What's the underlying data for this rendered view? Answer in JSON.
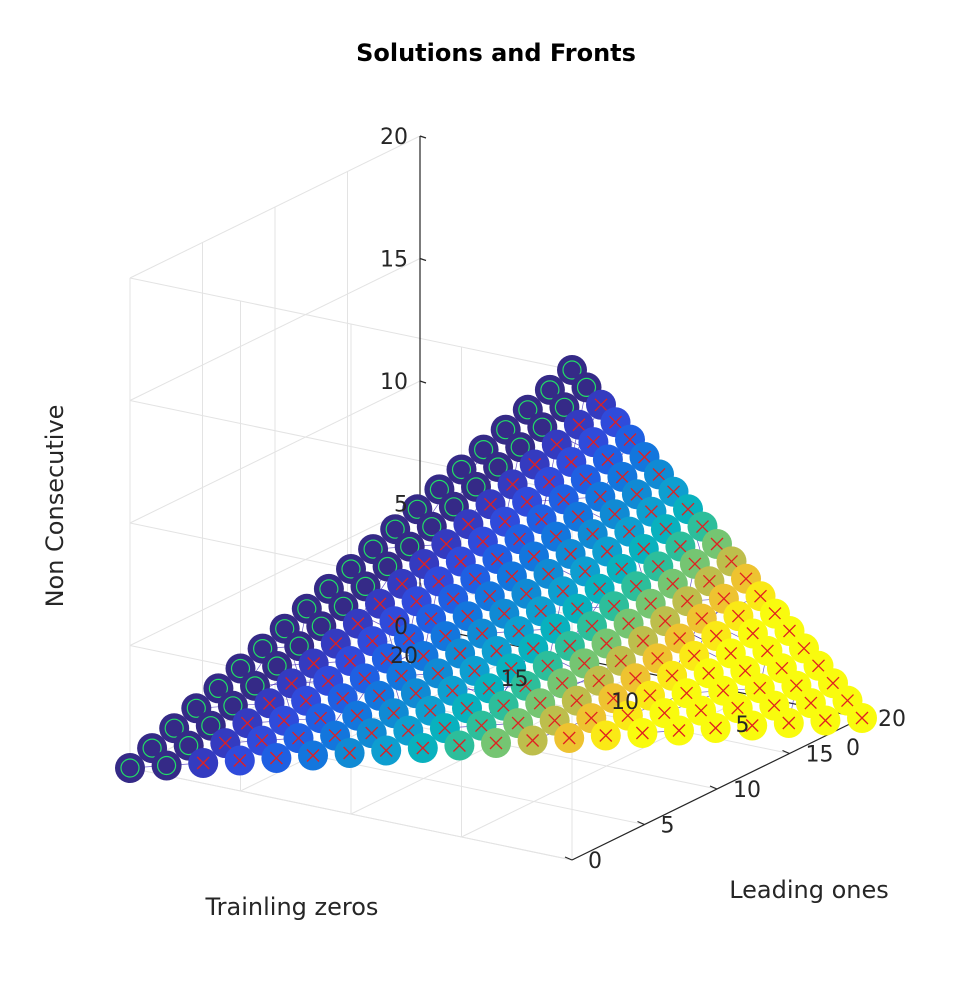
{
  "chart_data": {
    "type": "scatter",
    "projection": "3d",
    "title": "Solutions and Fronts",
    "xlabel": "Leading ones",
    "ylabel": "Trainling zeros",
    "zlabel": "Non Consecutive",
    "xlim": [
      0,
      20
    ],
    "ylim": [
      0,
      20
    ],
    "zlim": [
      0,
      20
    ],
    "xticks": [
      "0",
      "5",
      "10",
      "15",
      "20"
    ],
    "yticks": [
      "0",
      "5",
      "10",
      "15",
      "20"
    ],
    "zticks": [
      "0",
      "5",
      "10",
      "15",
      "20"
    ],
    "grid": true,
    "colormap": "parula",
    "mesh_color": "#3a22b5",
    "series": [
      {
        "marker": "filled-circle",
        "description": "Solutions over the triangular region Leading ones + Trainling zeros <= 20, colored by front rank"
      },
      {
        "marker": "o",
        "color": "#22dd66",
        "description": "first front"
      },
      {
        "marker": "x",
        "color": "#e02020",
        "description": "other fronts"
      }
    ],
    "points_rule": "x + y <= 20, z = 20 - x - y"
  }
}
